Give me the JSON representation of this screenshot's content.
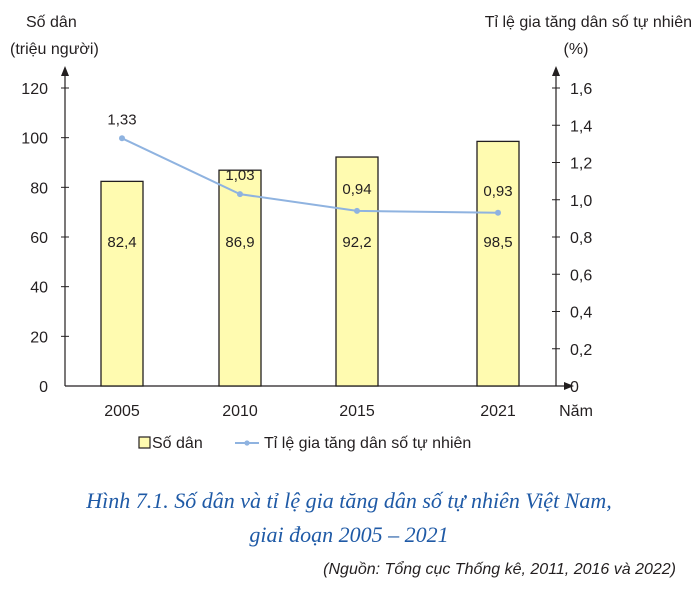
{
  "chart_data": {
    "type": "bar",
    "categories": [
      "2005",
      "2010",
      "2015",
      "2021"
    ],
    "x_unit_label": "Năm",
    "left_axis": {
      "title": "Số dân",
      "unit": "(triệu người)",
      "range": [
        0,
        120
      ],
      "ticks": [
        "0",
        "20",
        "40",
        "60",
        "80",
        "100",
        "120"
      ]
    },
    "right_axis": {
      "title": "Tỉ lệ gia tăng dân số tự nhiên",
      "unit": "(%)",
      "range": [
        0,
        1.6
      ],
      "ticks": [
        "0",
        "0,2",
        "0,4",
        "0,6",
        "0,8",
        "1,0",
        "1,2",
        "1,4",
        "1,6"
      ]
    },
    "series": [
      {
        "name": "Số dân",
        "kind": "bar",
        "axis": "left",
        "values": [
          82.4,
          86.9,
          92.2,
          98.5
        ],
        "labels": [
          "82,4",
          "86,9",
          "92,2",
          "98,5"
        ],
        "color": "#fffbb0"
      },
      {
        "name": "Tỉ lệ gia tăng dân số tự nhiên",
        "kind": "line",
        "axis": "right",
        "values": [
          1.33,
          1.03,
          0.94,
          0.93
        ],
        "labels": [
          "1,33",
          "1,03",
          "0,94",
          "0,93"
        ],
        "color": "#8fb3e0"
      }
    ],
    "legend_position": "bottom",
    "grid": false
  },
  "caption": {
    "line1": "Hình 7.1. Số dân và tỉ lệ gia tăng dân số tự nhiên Việt Nam,",
    "line2": "giai đoạn 2005 – 2021",
    "source": "(Nguồn: Tổng cục Thống kê, 2011, 2016 và 2022)"
  }
}
